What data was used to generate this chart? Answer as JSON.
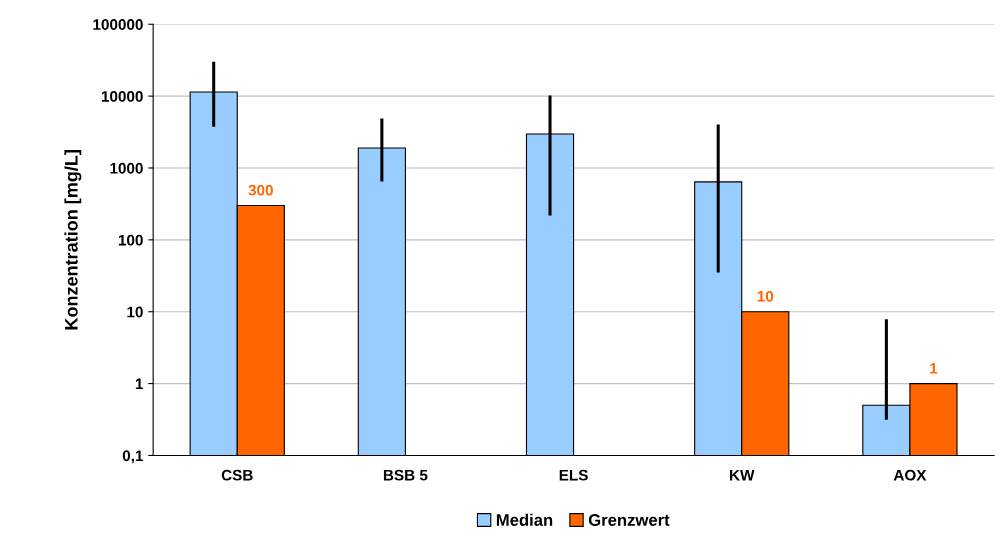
{
  "chart_data": {
    "type": "bar",
    "ylabel": "Konzentration [mg/L]",
    "categories": [
      "CSB",
      "BSB 5",
      "ELS",
      "KW",
      "AOX"
    ],
    "series": [
      {
        "name": "Median",
        "color": "#99ccff",
        "values": [
          11400,
          1900,
          2970,
          640,
          0.5
        ],
        "errors": [
          [
            3950,
            28700
          ],
          [
            680,
            4640
          ],
          [
            230,
            9700
          ],
          [
            37,
            3830
          ],
          [
            0.33,
            7.5
          ]
        ]
      },
      {
        "name": "Grenzwert",
        "color": "#ff6600",
        "values": [
          300,
          null,
          null,
          10,
          1
        ],
        "value_labels": [
          "300",
          null,
          null,
          "10",
          "1"
        ]
      }
    ],
    "log": "y",
    "ylim": [
      0.1,
      100000
    ],
    "yticks": [
      {
        "value": 0.1,
        "label": "0,1"
      },
      1,
      10,
      100,
      1000,
      10000,
      100000
    ],
    "grid": "y",
    "legend": "bottom"
  }
}
